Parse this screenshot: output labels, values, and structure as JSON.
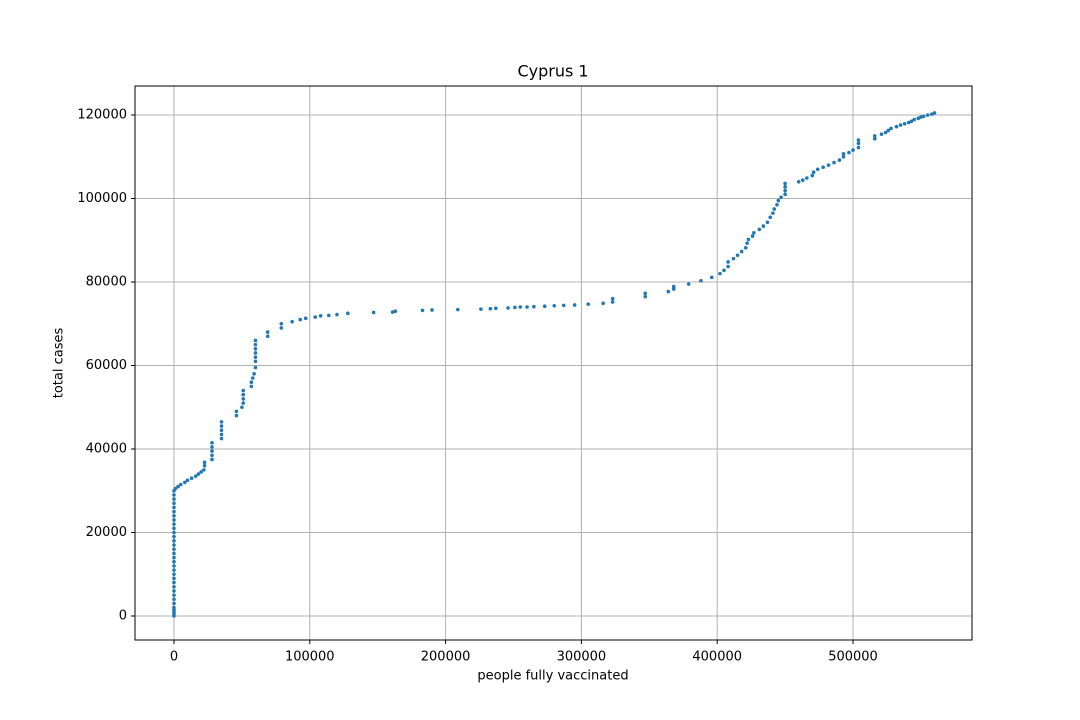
{
  "chart_data": {
    "type": "scatter",
    "title": "Cyprus 1",
    "x_label": "people fully vaccinated",
    "y_label": "total cases",
    "color": "#1f77b4",
    "grid": true,
    "xlim": [
      -28700,
      587600
    ],
    "ylim": [
      -5750,
      126950
    ],
    "xticks": [
      0,
      100000,
      200000,
      300000,
      400000,
      500000
    ],
    "yticks": [
      0,
      20000,
      40000,
      60000,
      80000,
      100000,
      120000
    ],
    "x": [
      0,
      0,
      0,
      0,
      0,
      0,
      0,
      0,
      0,
      0,
      0,
      0,
      0,
      0,
      0,
      0,
      0,
      0,
      0,
      0,
      0,
      0,
      0,
      0,
      0,
      0,
      0,
      0,
      0,
      0,
      0,
      0,
      0,
      1000,
      3000,
      5000,
      8000,
      10000,
      13000,
      16000,
      18000,
      20000,
      22000,
      22500,
      22500,
      28000,
      28000,
      28000,
      28000,
      28000,
      35000,
      35000,
      35000,
      35000,
      35000,
      46000,
      46000,
      50000,
      51000,
      51000,
      51000,
      51000,
      57000,
      57000,
      58000,
      59000,
      60000,
      60000,
      60000,
      60000,
      60000,
      60000,
      60000,
      69000,
      69000,
      79000,
      79000,
      87000,
      93000,
      97000,
      104000,
      108000,
      114000,
      120000,
      128000,
      147000,
      161000,
      163000,
      183000,
      190000,
      209000,
      226000,
      233000,
      237000,
      246000,
      251000,
      255000,
      260000,
      265000,
      273000,
      280000,
      287000,
      295000,
      305000,
      316000,
      323000,
      323000,
      347000,
      347000,
      364000,
      368000,
      368000,
      379000,
      388000,
      396000,
      402000,
      405000,
      408000,
      408000,
      412000,
      415000,
      418000,
      421000,
      422000,
      423000,
      426000,
      427000,
      431000,
      434000,
      437000,
      439000,
      441000,
      442000,
      444000,
      445000,
      447000,
      450000,
      450000,
      450000,
      450000,
      460000,
      463000,
      466000,
      470000,
      471000,
      474000,
      478000,
      482000,
      486000,
      490000,
      493000,
      493000,
      497000,
      500000,
      504000,
      504000,
      504000,
      516000,
      516000,
      521000,
      524000,
      526000,
      528000,
      532000,
      535000,
      538000,
      541000,
      543000,
      545000,
      548000,
      550000,
      552000,
      555000,
      558000,
      560000
    ],
    "values": [
      0,
      500,
      1000,
      1500,
      2000,
      3000,
      4000,
      5000,
      6000,
      7000,
      8000,
      9000,
      10000,
      11000,
      12000,
      13000,
      14000,
      15000,
      16000,
      17000,
      18000,
      19000,
      20000,
      21000,
      22000,
      23000,
      24000,
      25000,
      26000,
      27000,
      28000,
      29000,
      30000,
      30500,
      31000,
      31500,
      32000,
      32500,
      33000,
      33500,
      34000,
      34500,
      35000,
      36000,
      36800,
      37500,
      38500,
      39500,
      40500,
      41500,
      42500,
      43500,
      44500,
      45500,
      46500,
      48000,
      49000,
      50000,
      51000,
      52000,
      53000,
      54000,
      55000,
      56000,
      57000,
      58000,
      59500,
      61000,
      62000,
      63000,
      64000,
      65000,
      66000,
      67000,
      68000,
      69000,
      70000,
      70500,
      71000,
      71300,
      71600,
      71900,
      72000,
      72200,
      72500,
      72700,
      72800,
      73000,
      73200,
      73300,
      73400,
      73500,
      73600,
      73700,
      73800,
      73900,
      74000,
      74000,
      74100,
      74200,
      74300,
      74400,
      74500,
      74700,
      74900,
      75200,
      76000,
      76500,
      77300,
      77700,
      78300,
      78900,
      79500,
      80300,
      81100,
      82000,
      82800,
      83700,
      84800,
      85600,
      86400,
      87300,
      88200,
      89300,
      90200,
      91000,
      91800,
      92600,
      93400,
      94300,
      95500,
      96500,
      97500,
      98500,
      99500,
      100300,
      101000,
      101900,
      102800,
      103600,
      104000,
      104400,
      104900,
      105500,
      106300,
      107000,
      107500,
      108000,
      108600,
      109200,
      110000,
      110700,
      111000,
      111600,
      112200,
      113200,
      114000,
      114300,
      115000,
      115400,
      115800,
      116300,
      116800,
      117200,
      117600,
      117900,
      118200,
      118500,
      118900,
      119200,
      119500,
      119700,
      120000,
      120200,
      120500
    ]
  }
}
